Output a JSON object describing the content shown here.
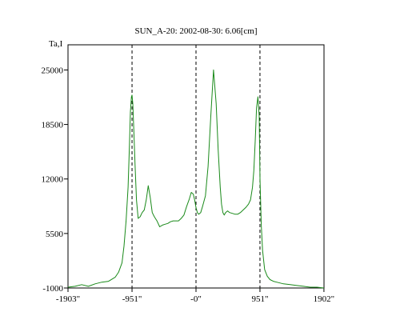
{
  "chart_data": {
    "type": "line",
    "title": "SUN_A-20: 2002-08-30: 6.06[cm]",
    "ylabel": "Ta,I",
    "xlabel": "",
    "xlim": [
      -1903,
      1903
    ],
    "ylim": [
      -1000,
      28000
    ],
    "x_ticks": [
      {
        "value": -1903,
        "label": "-1903\""
      },
      {
        "value": -951,
        "label": "-951\""
      },
      {
        "value": 0,
        "label": "-0\""
      },
      {
        "value": 951,
        "label": "951\""
      },
      {
        "value": 1902,
        "label": "1902\""
      }
    ],
    "y_ticks": [
      {
        "value": 25000,
        "label": "25000"
      },
      {
        "value": 18500,
        "label": "18500"
      },
      {
        "value": 12000,
        "label": "12000"
      },
      {
        "value": 5500,
        "label": "5500"
      },
      {
        "value": -1000,
        "label": "-1000"
      }
    ],
    "vlines": [
      -951,
      0,
      951
    ],
    "series": [
      {
        "color": "#1a8a1a",
        "x": [
          -1903,
          -1800,
          -1700,
          -1600,
          -1500,
          -1400,
          -1300,
          -1200,
          -1150,
          -1100,
          -1070,
          -1040,
          -1010,
          -990,
          -975,
          -960,
          -951,
          -940,
          -925,
          -905,
          -885,
          -860,
          -830,
          -800,
          -770,
          -740,
          -710,
          -680,
          -650,
          -620,
          -580,
          -540,
          -500,
          -460,
          -420,
          -380,
          -340,
          -300,
          -260,
          -220,
          -180,
          -140,
          -100,
          -70,
          -40,
          -20,
          0,
          20,
          40,
          70,
          100,
          140,
          180,
          220,
          260,
          300,
          330,
          360,
          380,
          400,
          420,
          440,
          470,
          500,
          540,
          580,
          620,
          660,
          700,
          740,
          780,
          810,
          840,
          860,
          880,
          900,
          920,
          940,
          951,
          970,
          990,
          1020,
          1060,
          1100,
          1150,
          1200,
          1300,
          1400,
          1500,
          1600,
          1700,
          1800,
          1902
        ],
        "y": [
          -900,
          -800,
          -600,
          -800,
          -500,
          -300,
          -200,
          300,
          900,
          2000,
          4000,
          7000,
          11000,
          16000,
          20000,
          21800,
          22000,
          21000,
          18000,
          13500,
          9500,
          7300,
          7500,
          8000,
          8300,
          9500,
          11200,
          9800,
          8000,
          7500,
          7000,
          6300,
          6500,
          6600,
          6700,
          6900,
          7000,
          7000,
          7000,
          7300,
          7700,
          8700,
          9600,
          10400,
          10200,
          9500,
          8600,
          8000,
          7800,
          8000,
          8800,
          10000,
          13500,
          19500,
          25000,
          21000,
          15500,
          11000,
          9000,
          8000,
          7700,
          8000,
          8200,
          8000,
          7900,
          7800,
          7800,
          8000,
          8300,
          8600,
          9000,
          9500,
          11000,
          13000,
          16500,
          20500,
          21800,
          19500,
          12000,
          6500,
          3500,
          1200,
          400,
          0,
          -200,
          -300,
          -500,
          -600,
          -700,
          -800,
          -900,
          -900,
          -1000
        ]
      }
    ]
  }
}
